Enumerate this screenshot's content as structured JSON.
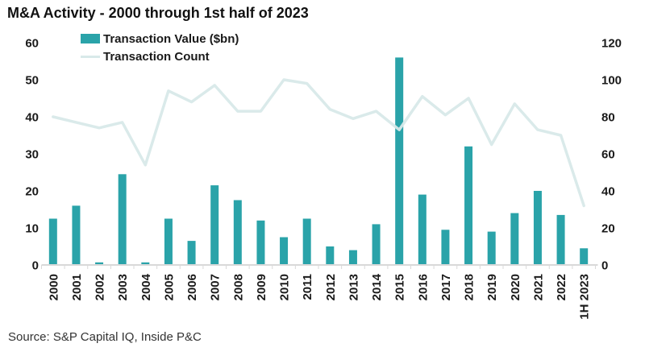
{
  "title": "M&A Activity - 2000 through 1st half of 2023",
  "legend": {
    "value_label": "Transaction Value ($bn)",
    "count_label": "Transaction Count"
  },
  "source": "Source: S&P Capital IQ, Inside P&C",
  "colors": {
    "bar": "#2aa3a9",
    "line": "#d8e9e9",
    "axis": "#d9d9d9",
    "text": "#1a1a1a"
  },
  "chart_data": {
    "type": "bar",
    "title": "M&A Activity - 2000 through 1st half of 2023",
    "categories": [
      "2000",
      "2001",
      "2002",
      "2003",
      "2004",
      "2005",
      "2006",
      "2007",
      "2008",
      "2009",
      "2010",
      "2011",
      "2012",
      "2013",
      "2014",
      "2015",
      "2016",
      "2017",
      "2018",
      "2019",
      "2020",
      "2021",
      "2022",
      "1H 2023"
    ],
    "series": [
      {
        "name": "Transaction Value ($bn)",
        "type": "bar",
        "axis": "left",
        "values": [
          12.5,
          16,
          0.7,
          24.5,
          0.7,
          12.5,
          6.5,
          21.5,
          17.5,
          12,
          7.5,
          12.5,
          5,
          4,
          11,
          56,
          19,
          9.5,
          32,
          9,
          14,
          20,
          13.5,
          4.5
        ]
      },
      {
        "name": "Transaction Count",
        "type": "line",
        "axis": "right",
        "values": [
          80,
          77,
          74,
          77,
          54,
          94,
          88,
          97,
          83,
          83,
          100,
          98,
          84,
          79,
          83,
          73,
          91,
          81,
          90,
          65,
          87,
          73,
          70,
          32
        ]
      }
    ],
    "left_axis": {
      "ticks": [
        0,
        10,
        20,
        30,
        40,
        50,
        60
      ],
      "range": [
        0,
        60
      ]
    },
    "right_axis": {
      "ticks": [
        0,
        20,
        40,
        60,
        80,
        100,
        120
      ],
      "range": [
        0,
        120
      ]
    },
    "grid": "off",
    "legend_position": "top-left"
  }
}
